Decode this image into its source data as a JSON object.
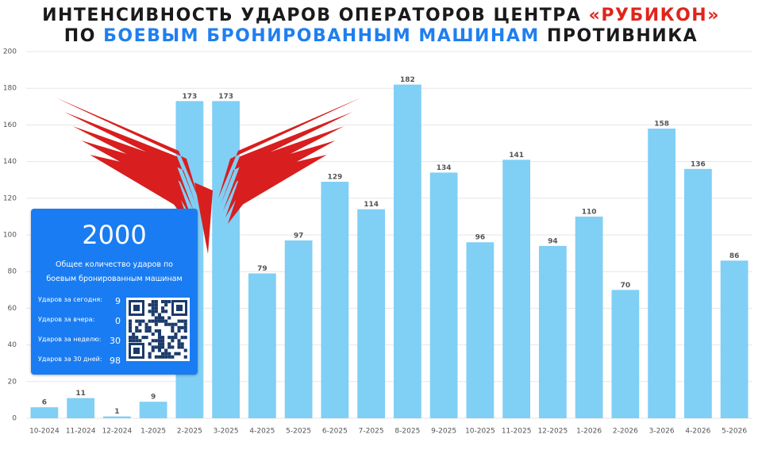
{
  "chart_data": {
    "type": "bar",
    "title_lines": [
      [
        {
          "text": "ИНТЕНСИВНОСТЬ УДАРОВ ОПЕРАТОРОВ ЦЕНТРА",
          "color": "#1a1a1a"
        },
        {
          "text": "«РУБИКОН»",
          "color": "#e0241b"
        }
      ],
      [
        {
          "text": "ПО",
          "color": "#1a1a1a"
        },
        {
          "text": "БОЕВЫМ БРОНИРОВАННЫМ МАШИНАМ",
          "color": "#1f7ff0"
        },
        {
          "text": "ПРОТИВНИКА",
          "color": "#1a1a1a"
        }
      ]
    ],
    "categories": [
      "10-2024",
      "11-2024",
      "12-2024",
      "1-2025",
      "2-2025",
      "3-2025",
      "4-2025",
      "5-2025",
      "6-2025",
      "7-2025",
      "8-2025",
      "9-2025",
      "10-2025",
      "11-2025",
      "12-2025",
      "1-2026",
      "2-2026",
      "3-2026",
      "4-2026",
      "5-2026"
    ],
    "values": [
      6,
      11,
      1,
      9,
      173,
      173,
      79,
      97,
      129,
      114,
      182,
      134,
      96,
      141,
      94,
      110,
      70,
      158,
      136,
      86
    ],
    "color": "#80cff5",
    "ylim": [
      0,
      200
    ],
    "yticks": [
      0,
      20,
      40,
      60,
      80,
      100,
      120,
      140,
      160,
      180,
      200
    ],
    "grid": true
  },
  "panel": {
    "total": "2000",
    "caption": "Общее количество ударов по боевым бронированным машинам",
    "stats": [
      [
        "Ударов за сегодня:",
        "9"
      ],
      [
        "Ударов за вчера:",
        "0"
      ],
      [
        "Ударов за неделю:",
        "30"
      ],
      [
        "Ударов за 30 дней:",
        "98"
      ]
    ]
  }
}
